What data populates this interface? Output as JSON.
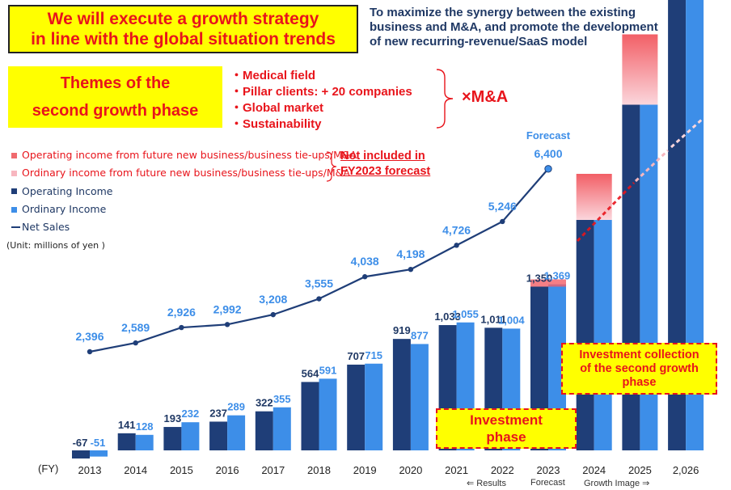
{
  "header": {
    "headline": [
      "We will execute a growth strategy",
      "in line with the global situation trends"
    ],
    "subhead": [
      "To maximize the synergy between the existing",
      "business and M&A, and promote the development",
      "of new recurring-revenue/SaaS model"
    ]
  },
  "themes": {
    "title": [
      "Themes of the",
      "second growth phase"
    ],
    "items": [
      "・Medical field",
      "・Pillar clients: + 20 companies",
      "・Global market",
      "・Sustainability"
    ],
    "ma_label": "×M&A"
  },
  "legend": [
    {
      "label": "Operating income from future new business/business tie-ups/M&A",
      "color": "#f06a6e",
      "text_color": "#e8141b",
      "kind": "square"
    },
    {
      "label": "Ordinary income from future new business/business tie-ups/M&A",
      "color": "#f7b6bf",
      "text_color": "#e8141b",
      "kind": "square"
    },
    {
      "label": "Operating Income",
      "color": "#1f3e78",
      "text_color": "#1f3864",
      "kind": "square"
    },
    {
      "label": "Ordinary Income",
      "color": "#3d8ee8",
      "text_color": "#1f3864",
      "kind": "square"
    },
    {
      "label": "Net Sales",
      "color": "#1f3e78",
      "text_color": "#1f3864",
      "kind": "line"
    }
  ],
  "not_included": [
    "Not included in",
    "FY2023 forecast"
  ],
  "unit_note": "(Unit: millions of yen )",
  "callouts": {
    "investment_phase": [
      "Investment",
      "phase"
    ],
    "investment_collection": [
      "Investment collection",
      "of the second growth",
      "phase"
    ]
  },
  "fy_label": "(FY)",
  "bottom_notes": {
    "results": "⇐ Results",
    "forecast": "Forecast",
    "growth": "Growth Image ⇒"
  },
  "chart_data": {
    "type": "bar",
    "categories": [
      "2013",
      "2014",
      "2015",
      "2016",
      "2017",
      "2018",
      "2019",
      "2020",
      "2021",
      "2022",
      "2023",
      "2024",
      "2025",
      "2,026"
    ],
    "series": [
      {
        "name": "Operating Income",
        "color": "#1f3e78",
        "values": [
          -67,
          141,
          193,
          237,
          322,
          564,
          707,
          919,
          1033,
          1011,
          1350,
          null,
          null,
          null
        ]
      },
      {
        "name": "Ordinary Income",
        "color": "#3d8ee8",
        "values": [
          -51,
          128,
          232,
          289,
          355,
          591,
          715,
          877,
          1055,
          1004,
          1369,
          null,
          null,
          null
        ]
      },
      {
        "name": "Net Sales",
        "type": "line",
        "color": "#1f3e78",
        "label_color": "#3d8ee8",
        "values": [
          2396,
          2589,
          2926,
          2992,
          3208,
          3555,
          4038,
          4198,
          4726,
          5246,
          6400,
          null,
          null,
          null
        ]
      }
    ],
    "line_top_label": "Forecast",
    "line_labels": [
      "2,396",
      "2,589",
      "2,926",
      "2,992",
      "3,208",
      "3,555",
      "4,038",
      "4,198",
      "4,726",
      "5,246",
      "6,400"
    ],
    "op_labels": [
      "-67",
      "141",
      "193",
      "237",
      "322",
      "564",
      "707",
      "919",
      "1,033",
      "1,011",
      "1,350"
    ],
    "ord_labels": [
      "-51",
      "128",
      "232",
      "289",
      "355",
      "591",
      "715",
      "877",
      "1,055",
      "1,004",
      "1,369"
    ],
    "growth_image": [
      {
        "year": "2024",
        "operating_base": 1900,
        "future_top": 2280
      },
      {
        "year": "2025",
        "operating_base": 2850,
        "future_top": 3430
      },
      {
        "year": "2,026",
        "operating_base": 3830,
        "future_top": 4820
      }
    ],
    "future_colors": {
      "top": "#f25f66",
      "bottom": "#fbd6dc"
    }
  }
}
